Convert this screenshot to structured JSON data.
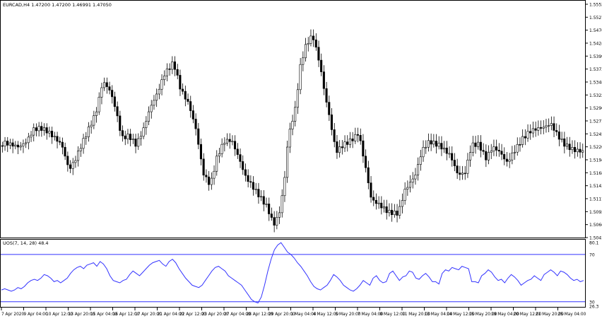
{
  "main_chart": {
    "title": "EURCAD,H4  1.47200 1.47200 1.46991 1.47050",
    "price_labels": [
      "1.55525",
      "1.55270",
      "1.54760",
      "1.54245",
      "1.53990",
      "1.53735",
      "1.53480",
      "1.53225",
      "1.52965",
      "1.52710",
      "1.52455",
      "1.52200",
      "1.51940",
      "1.51685",
      "1.51430",
      "1.51175",
      "1.50920",
      "1.50665",
      "1.50410"
    ],
    "colors": {
      "up_candle": "#ffffff",
      "down_candle": "#000000",
      "outline": "#000000"
    }
  },
  "indicator": {
    "title": "UOS(7, 14, 28) 48.4",
    "level_labels": [
      "80.1",
      "70",
      "30",
      "26.3"
    ],
    "colors": {
      "line": "#3333ff",
      "levels": "#3333ff"
    }
  },
  "time_labels": [
    "7 Apr 2020",
    "9 Apr 04:00",
    "10 Apr 12:00",
    "13 Apr 20:00",
    "15 Apr 04:00",
    "16 Apr 12:00",
    "17 Apr 20:00",
    "21 Apr 04:00",
    "22 Apr 12:00",
    "23 Apr 20:00",
    "27 Apr 04:00",
    "28 Apr 12:00",
    "29 Apr 20:00",
    "1 May 04:00",
    "4 May 12:00",
    "5 May 20:00",
    "7 May 04:00",
    "8 May 12:00",
    "11 May 20:00",
    "13 May 04:00",
    "14 May 12:00",
    "15 May 20:00",
    "19 May 04:00",
    "20 May 12:00",
    "21 May 20:00",
    "25 May 04:00"
  ],
  "chart_data": {
    "type": "line",
    "series": [
      {
        "values": [
          40,
          41,
          40,
          39,
          40,
          42,
          41,
          43,
          46,
          48,
          49,
          48,
          50,
          53,
          52,
          50,
          47,
          48,
          46,
          48,
          50,
          54,
          57,
          59,
          60,
          58,
          61,
          62,
          63,
          60,
          64,
          62,
          58,
          52,
          48,
          47,
          46,
          48,
          49,
          53,
          56,
          54,
          52,
          55,
          58,
          61,
          63,
          64,
          65,
          62,
          60,
          64,
          66,
          63,
          58,
          54,
          50,
          47,
          44,
          43,
          42,
          44,
          48,
          52,
          56,
          59,
          60,
          58,
          56,
          52,
          50,
          48,
          46,
          44,
          40,
          36,
          32,
          30,
          29,
          34,
          44,
          56,
          66,
          74,
          78,
          80,
          76,
          72,
          70,
          67,
          63,
          60,
          56,
          52,
          47,
          43,
          41,
          40,
          42,
          44,
          48,
          53,
          51,
          48,
          44,
          42,
          40,
          39,
          41,
          44,
          48,
          46,
          44,
          50,
          52,
          48,
          46,
          47,
          54,
          56,
          52,
          48,
          51,
          52,
          56,
          55,
          50,
          49,
          52,
          54,
          51,
          47,
          47,
          45,
          54,
          57,
          56,
          59,
          58,
          57,
          60,
          59,
          58,
          47,
          47,
          46,
          52,
          54,
          57,
          55,
          51,
          48,
          49,
          46,
          50,
          53,
          51,
          48,
          44,
          46,
          48,
          49,
          52,
          50,
          48,
          53,
          55,
          57,
          55,
          52,
          56,
          55,
          53,
          50,
          48,
          49,
          47,
          48
        ]
      }
    ]
  }
}
